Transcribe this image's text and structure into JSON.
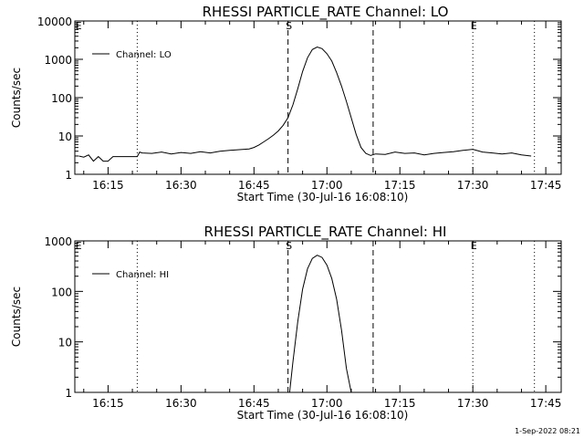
{
  "chart_data": [
    {
      "type": "line",
      "title": "RHESSI PARTICLE_RATE Channel: LO",
      "xlabel": "Start Time (30-Jul-16 16:08:10)",
      "ylabel": "Counts/sec",
      "y_scale": "log",
      "xlim": [
        "16:08:10",
        "17:48:10"
      ],
      "ylim": [
        1,
        10000
      ],
      "x_ticks": [
        "16:15",
        "16:30",
        "16:45",
        "17:00",
        "17:15",
        "17:30",
        "17:45"
      ],
      "y_ticks": [
        "1",
        "10",
        "100",
        "1000",
        "10000"
      ],
      "legend": {
        "placement": "top-left",
        "entries": [
          "Channel: LO"
        ]
      },
      "markers": [
        {
          "label": "E",
          "time": "16:08:45",
          "style": "none"
        },
        {
          "label": "",
          "time": "16:21:00",
          "style": "dotted"
        },
        {
          "label": "S",
          "time": "16:52:00",
          "style": "dashed"
        },
        {
          "label": "",
          "time": "17:09:30",
          "style": "dashed"
        },
        {
          "label": "E",
          "time": "17:30:00",
          "style": "dotted"
        },
        {
          "label": "",
          "time": "17:42:40",
          "style": "dotted"
        }
      ],
      "series": [
        {
          "name": "Channel: LO",
          "x": [
            "16:09:00",
            "16:10:00",
            "16:11:00",
            "16:12:00",
            "16:13:00",
            "16:14:00",
            "16:15:00",
            "16:16:00",
            "16:17:00",
            "16:18:00",
            "16:19:00",
            "16:20:00",
            "16:21:00",
            "16:21:30",
            "16:22:00",
            "16:24:00",
            "16:26:00",
            "16:28:00",
            "16:30:00",
            "16:32:00",
            "16:34:00",
            "16:36:00",
            "16:38:00",
            "16:40:00",
            "16:42:00",
            "16:44:00",
            "16:45:00",
            "16:46:00",
            "16:47:00",
            "16:48:00",
            "16:49:00",
            "16:50:00",
            "16:51:00",
            "16:52:00",
            "16:53:00",
            "16:54:00",
            "16:55:00",
            "16:56:00",
            "16:57:00",
            "16:58:00",
            "16:59:00",
            "17:00:00",
            "17:01:00",
            "17:02:00",
            "17:03:00",
            "17:04:00",
            "17:05:00",
            "17:06:00",
            "17:07:00",
            "17:08:00",
            "17:09:00",
            "17:10:00",
            "17:12:00",
            "17:14:00",
            "17:16:00",
            "17:18:00",
            "17:20:00",
            "17:22:00",
            "17:24:00",
            "17:26:00",
            "17:28:00",
            "17:30:00",
            "17:32:00",
            "17:34:00",
            "17:36:00",
            "17:38:00",
            "17:40:00",
            "17:42:00"
          ],
          "values": [
            3.0,
            2.8,
            3.2,
            2.2,
            2.9,
            2.2,
            2.2,
            2.9,
            2.9,
            2.9,
            2.9,
            2.9,
            2.9,
            3.8,
            3.6,
            3.5,
            3.8,
            3.4,
            3.7,
            3.5,
            3.9,
            3.6,
            4.0,
            4.2,
            4.4,
            4.6,
            5.0,
            5.8,
            7.0,
            8.5,
            10.5,
            13.5,
            19,
            30,
            65,
            170,
            480,
            1100,
            1800,
            2100,
            1900,
            1400,
            900,
            450,
            200,
            80,
            30,
            11,
            5,
            3.5,
            3.1,
            3.4,
            3.3,
            3.8,
            3.5,
            3.6,
            3.2,
            3.5,
            3.7,
            3.9,
            4.2,
            4.5,
            3.8,
            3.6,
            3.4,
            3.6,
            3.2,
            3.0
          ]
        }
      ]
    },
    {
      "type": "line",
      "title": "RHESSI PARTICLE_RATE Channel: HI",
      "xlabel": "Start Time (30-Jul-16 16:08:10)",
      "ylabel": "Counts/sec",
      "y_scale": "log",
      "xlim": [
        "16:08:10",
        "17:48:10"
      ],
      "ylim": [
        1,
        1000
      ],
      "x_ticks": [
        "16:15",
        "16:30",
        "16:45",
        "17:00",
        "17:15",
        "17:30",
        "17:45"
      ],
      "y_ticks": [
        "1",
        "10",
        "100",
        "1000"
      ],
      "legend": {
        "placement": "top-left",
        "entries": [
          "Channel: HI"
        ]
      },
      "markers": [
        {
          "label": "E",
          "time": "16:08:45",
          "style": "none"
        },
        {
          "label": "",
          "time": "16:21:00",
          "style": "dotted"
        },
        {
          "label": "S",
          "time": "16:52:00",
          "style": "dashed"
        },
        {
          "label": "",
          "time": "17:09:30",
          "style": "dashed"
        },
        {
          "label": "E",
          "time": "17:30:00",
          "style": "dotted"
        },
        {
          "label": "",
          "time": "17:42:40",
          "style": "dotted"
        }
      ],
      "series": [
        {
          "name": "Channel: HI",
          "x": [
            "16:52:20",
            "16:53:00",
            "16:54:00",
            "16:55:00",
            "16:56:00",
            "16:57:00",
            "16:58:00",
            "16:59:00",
            "17:00:00",
            "17:01:00",
            "17:02:00",
            "17:03:00",
            "17:04:00",
            "17:05:00"
          ],
          "values": [
            1.0,
            4.0,
            25,
            110,
            280,
            450,
            520,
            470,
            330,
            180,
            70,
            17,
            3.0,
            1.0
          ]
        }
      ]
    }
  ],
  "footer": {
    "timestamp": "1-Sep-2022 08:21"
  }
}
